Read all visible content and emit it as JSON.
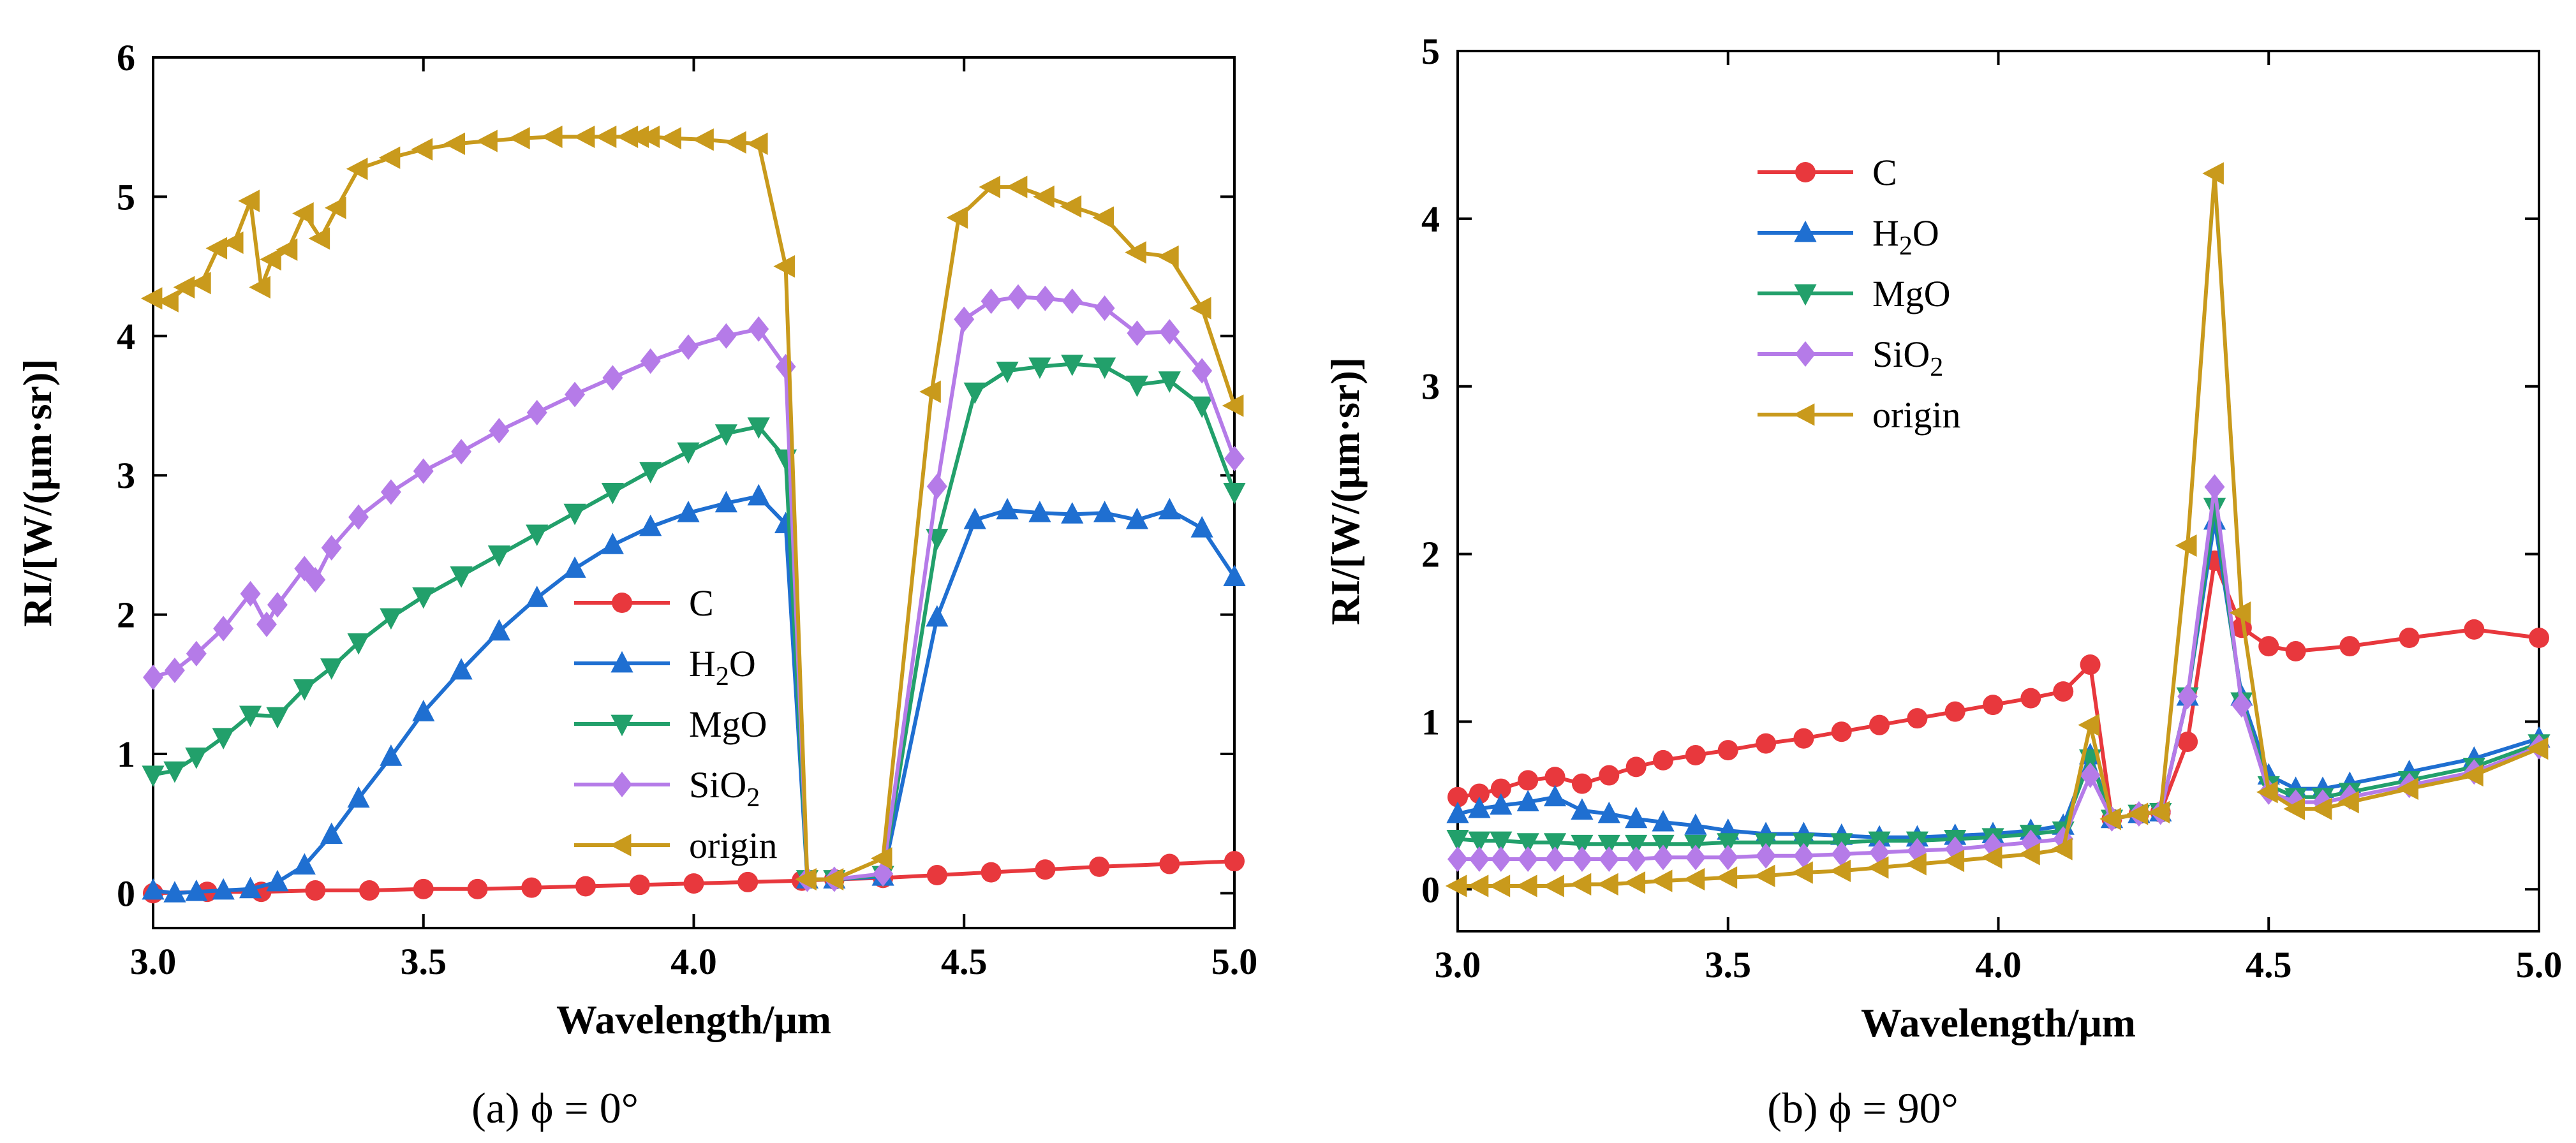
{
  "chart_data": [
    {
      "type": "line",
      "caption": "(a)  ϕ = 0°",
      "xlabel": "Wavelength/μm",
      "ylabel": "RI/[W/(μm·sr)]",
      "xlim": [
        3.0,
        5.0
      ],
      "ylim": [
        -0.25,
        6.0
      ],
      "xticks": [
        "3.0",
        "3.5",
        "4.0",
        "4.5",
        "5.0"
      ],
      "yticks": [
        "0",
        "1",
        "2",
        "3",
        "4",
        "5",
        "6"
      ],
      "legend_position": "bottom-right",
      "series": [
        {
          "name": "C",
          "sub": "",
          "tail": "",
          "color": "#e8383d",
          "marker": "circle",
          "x": [
            3.0,
            3.1,
            3.2,
            3.3,
            3.4,
            3.5,
            3.6,
            3.7,
            3.8,
            3.9,
            4.0,
            4.1,
            4.2,
            4.26,
            4.35,
            4.45,
            4.55,
            4.65,
            4.75,
            4.88,
            5.0
          ],
          "y": [
            0.0,
            0.01,
            0.01,
            0.02,
            0.02,
            0.03,
            0.03,
            0.04,
            0.05,
            0.06,
            0.07,
            0.08,
            0.09,
            0.1,
            0.11,
            0.13,
            0.15,
            0.17,
            0.19,
            0.21,
            0.23
          ]
        },
        {
          "name": "H",
          "sub": "2",
          "tail": "O",
          "color": "#1f6fd1",
          "marker": "triangle-up",
          "x": [
            3.0,
            3.04,
            3.08,
            3.13,
            3.18,
            3.23,
            3.28,
            3.33,
            3.38,
            3.44,
            3.5,
            3.57,
            3.64,
            3.71,
            3.78,
            3.85,
            3.92,
            3.99,
            4.06,
            4.12,
            4.17,
            4.21,
            4.26,
            4.35,
            4.45,
            4.52,
            4.58,
            4.64,
            4.7,
            4.76,
            4.82,
            4.88,
            4.94,
            5.0
          ],
          "y": [
            0.02,
            0.0,
            0.01,
            0.02,
            0.03,
            0.08,
            0.2,
            0.42,
            0.68,
            0.98,
            1.3,
            1.6,
            1.88,
            2.12,
            2.33,
            2.5,
            2.63,
            2.73,
            2.8,
            2.85,
            2.65,
            0.1,
            0.1,
            0.12,
            1.98,
            2.68,
            2.75,
            2.73,
            2.72,
            2.73,
            2.68,
            2.75,
            2.62,
            2.27
          ]
        },
        {
          "name": "MgO",
          "sub": "",
          "tail": "",
          "color": "#22a06b",
          "marker": "triangle-down",
          "x": [
            3.0,
            3.04,
            3.08,
            3.13,
            3.18,
            3.23,
            3.28,
            3.33,
            3.38,
            3.44,
            3.5,
            3.57,
            3.64,
            3.71,
            3.78,
            3.85,
            3.92,
            3.99,
            4.06,
            4.12,
            4.17,
            4.21,
            4.26,
            4.35,
            4.45,
            4.52,
            4.58,
            4.64,
            4.7,
            4.76,
            4.82,
            4.88,
            4.94,
            5.0
          ],
          "y": [
            0.85,
            0.88,
            0.98,
            1.12,
            1.28,
            1.27,
            1.47,
            1.62,
            1.8,
            1.98,
            2.13,
            2.28,
            2.43,
            2.58,
            2.73,
            2.88,
            3.03,
            3.17,
            3.3,
            3.35,
            3.12,
            0.1,
            0.1,
            0.13,
            2.55,
            3.6,
            3.75,
            3.78,
            3.8,
            3.78,
            3.65,
            3.68,
            3.5,
            2.88
          ]
        },
        {
          "name": "SiO",
          "sub": "2",
          "tail": "",
          "color": "#b57be8",
          "marker": "diamond",
          "x": [
            3.0,
            3.04,
            3.08,
            3.13,
            3.18,
            3.21,
            3.23,
            3.28,
            3.3,
            3.33,
            3.38,
            3.44,
            3.5,
            3.57,
            3.64,
            3.71,
            3.78,
            3.85,
            3.92,
            3.99,
            4.06,
            4.12,
            4.17,
            4.21,
            4.26,
            4.35,
            4.45,
            4.5,
            4.55,
            4.6,
            4.65,
            4.7,
            4.76,
            4.82,
            4.88,
            4.94,
            5.0
          ],
          "y": [
            1.55,
            1.6,
            1.72,
            1.9,
            2.15,
            1.93,
            2.07,
            2.33,
            2.25,
            2.48,
            2.7,
            2.88,
            3.03,
            3.17,
            3.32,
            3.45,
            3.58,
            3.7,
            3.82,
            3.92,
            4.0,
            4.05,
            3.78,
            0.1,
            0.1,
            0.14,
            2.92,
            4.12,
            4.25,
            4.28,
            4.27,
            4.25,
            4.2,
            4.02,
            4.03,
            3.75,
            3.12
          ]
        },
        {
          "name": "origin",
          "sub": "",
          "tail": "",
          "color": "#c99a1c",
          "marker": "triangle-left",
          "x": [
            3.0,
            3.03,
            3.06,
            3.09,
            3.12,
            3.15,
            3.18,
            3.2,
            3.22,
            3.25,
            3.28,
            3.31,
            3.34,
            3.38,
            3.44,
            3.5,
            3.56,
            3.62,
            3.68,
            3.74,
            3.8,
            3.84,
            3.88,
            3.9,
            3.92,
            3.96,
            4.02,
            4.08,
            4.12,
            4.17,
            4.21,
            4.26,
            4.35,
            4.44,
            4.49,
            4.55,
            4.6,
            4.65,
            4.7,
            4.76,
            4.82,
            4.88,
            4.94,
            5.0
          ],
          "y": [
            4.27,
            4.25,
            4.35,
            4.38,
            4.63,
            4.67,
            4.97,
            4.35,
            4.55,
            4.62,
            4.88,
            4.7,
            4.92,
            5.2,
            5.28,
            5.34,
            5.38,
            5.4,
            5.42,
            5.43,
            5.43,
            5.43,
            5.43,
            5.43,
            5.43,
            5.42,
            5.41,
            5.39,
            5.38,
            4.5,
            0.1,
            0.1,
            0.25,
            3.6,
            4.85,
            5.07,
            5.07,
            5.0,
            4.93,
            4.85,
            4.6,
            4.57,
            4.2,
            3.5
          ]
        }
      ]
    },
    {
      "type": "line",
      "caption": "(b)  ϕ = 90°",
      "xlabel": "Wavelength/μm",
      "ylabel": "RI/[W/(μm·sr)]",
      "xlim": [
        3.0,
        5.0
      ],
      "ylim": [
        -0.25,
        5.0
      ],
      "xticks": [
        "3.0",
        "3.5",
        "4.0",
        "4.5",
        "5.0"
      ],
      "yticks": [
        "0",
        "1",
        "2",
        "3",
        "4",
        "5"
      ],
      "legend_position": "top-left",
      "series": [
        {
          "name": "C",
          "sub": "",
          "tail": "",
          "color": "#e8383d",
          "marker": "circle",
          "x": [
            3.0,
            3.04,
            3.08,
            3.13,
            3.18,
            3.23,
            3.28,
            3.33,
            3.38,
            3.44,
            3.5,
            3.57,
            3.64,
            3.71,
            3.78,
            3.85,
            3.92,
            3.99,
            4.06,
            4.12,
            4.17,
            4.21,
            4.26,
            4.3,
            4.35,
            4.4,
            4.45,
            4.5,
            4.55,
            4.65,
            4.76,
            4.88,
            5.0
          ],
          "y": [
            0.55,
            0.57,
            0.6,
            0.65,
            0.67,
            0.63,
            0.68,
            0.73,
            0.77,
            0.8,
            0.83,
            0.87,
            0.9,
            0.94,
            0.98,
            1.02,
            1.06,
            1.1,
            1.14,
            1.18,
            1.34,
            0.42,
            0.45,
            0.46,
            0.88,
            1.96,
            1.56,
            1.45,
            1.42,
            1.45,
            1.5,
            1.55,
            1.5
          ]
        },
        {
          "name": "H",
          "sub": "2",
          "tail": "O",
          "color": "#1f6fd1",
          "marker": "triangle-up",
          "x": [
            3.0,
            3.04,
            3.08,
            3.13,
            3.18,
            3.23,
            3.28,
            3.33,
            3.38,
            3.44,
            3.5,
            3.57,
            3.64,
            3.71,
            3.78,
            3.85,
            3.92,
            3.99,
            4.06,
            4.12,
            4.17,
            4.21,
            4.26,
            4.3,
            4.35,
            4.4,
            4.45,
            4.5,
            4.55,
            4.6,
            4.65,
            4.76,
            4.88,
            5.0
          ],
          "y": [
            0.45,
            0.48,
            0.5,
            0.52,
            0.55,
            0.47,
            0.45,
            0.42,
            0.4,
            0.38,
            0.35,
            0.33,
            0.33,
            0.32,
            0.31,
            0.31,
            0.32,
            0.33,
            0.35,
            0.38,
            0.8,
            0.42,
            0.45,
            0.46,
            1.15,
            2.2,
            1.15,
            0.68,
            0.6,
            0.6,
            0.63,
            0.7,
            0.78,
            0.9
          ]
        },
        {
          "name": "MgO",
          "sub": "",
          "tail": "",
          "color": "#22a06b",
          "marker": "triangle-down",
          "x": [
            3.0,
            3.04,
            3.08,
            3.13,
            3.18,
            3.23,
            3.28,
            3.33,
            3.38,
            3.44,
            3.5,
            3.57,
            3.64,
            3.71,
            3.78,
            3.85,
            3.92,
            3.99,
            4.06,
            4.12,
            4.17,
            4.21,
            4.26,
            4.3,
            4.35,
            4.4,
            4.45,
            4.5,
            4.55,
            4.6,
            4.65,
            4.76,
            4.88,
            5.0
          ],
          "y": [
            0.3,
            0.29,
            0.29,
            0.28,
            0.28,
            0.27,
            0.27,
            0.27,
            0.27,
            0.27,
            0.28,
            0.28,
            0.28,
            0.28,
            0.29,
            0.29,
            0.3,
            0.31,
            0.33,
            0.35,
            0.78,
            0.42,
            0.45,
            0.46,
            1.15,
            2.28,
            1.12,
            0.62,
            0.55,
            0.55,
            0.58,
            0.65,
            0.73,
            0.87
          ]
        },
        {
          "name": "SiO",
          "sub": "2",
          "tail": "",
          "color": "#b57be8",
          "marker": "diamond",
          "x": [
            3.0,
            3.04,
            3.08,
            3.13,
            3.18,
            3.23,
            3.28,
            3.33,
            3.38,
            3.44,
            3.5,
            3.57,
            3.64,
            3.71,
            3.78,
            3.85,
            3.92,
            3.99,
            4.06,
            4.12,
            4.17,
            4.21,
            4.26,
            4.3,
            4.35,
            4.4,
            4.45,
            4.5,
            4.55,
            4.6,
            4.65,
            4.76,
            4.88,
            5.0
          ],
          "y": [
            0.18,
            0.18,
            0.18,
            0.18,
            0.18,
            0.18,
            0.18,
            0.18,
            0.19,
            0.19,
            0.19,
            0.2,
            0.2,
            0.21,
            0.22,
            0.23,
            0.24,
            0.26,
            0.28,
            0.3,
            0.68,
            0.42,
            0.45,
            0.46,
            1.15,
            2.4,
            1.1,
            0.58,
            0.52,
            0.52,
            0.55,
            0.62,
            0.7,
            0.85
          ]
        },
        {
          "name": "origin",
          "sub": "",
          "tail": "",
          "color": "#c99a1c",
          "marker": "triangle-left",
          "x": [
            3.0,
            3.04,
            3.08,
            3.13,
            3.18,
            3.23,
            3.28,
            3.33,
            3.38,
            3.44,
            3.5,
            3.57,
            3.64,
            3.71,
            3.78,
            3.85,
            3.92,
            3.99,
            4.06,
            4.12,
            4.17,
            4.21,
            4.26,
            4.3,
            4.35,
            4.4,
            4.45,
            4.5,
            4.55,
            4.6,
            4.65,
            4.76,
            4.88,
            5.0
          ],
          "y": [
            0.02,
            0.02,
            0.02,
            0.02,
            0.02,
            0.03,
            0.03,
            0.04,
            0.05,
            0.06,
            0.07,
            0.08,
            0.1,
            0.11,
            0.13,
            0.15,
            0.17,
            0.19,
            0.21,
            0.24,
            0.98,
            0.42,
            0.45,
            0.46,
            2.05,
            4.27,
            1.65,
            0.58,
            0.48,
            0.48,
            0.52,
            0.6,
            0.68,
            0.84
          ]
        }
      ]
    }
  ]
}
